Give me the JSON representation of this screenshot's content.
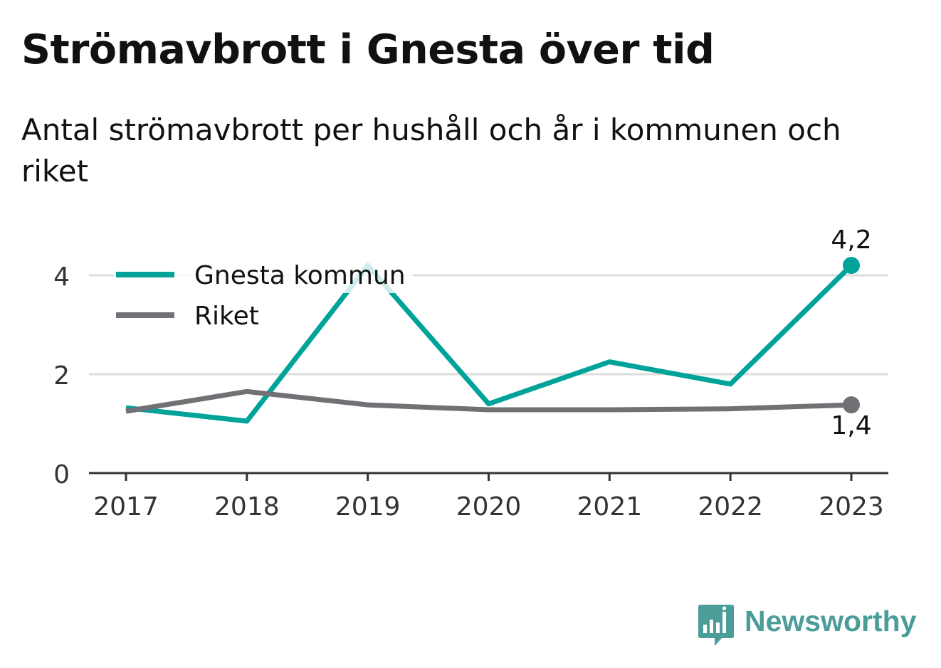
{
  "title": "Strömavbrott i Gnesta över tid",
  "subtitle": "Antal strömavbrott per hushåll och år i kommunen och riket",
  "brand": {
    "name": "Newsworthy",
    "icon": "newsworthy-logo-icon",
    "color": "#4a9d98"
  },
  "chart_data": {
    "type": "line",
    "x": [
      "2017",
      "2018",
      "2019",
      "2020",
      "2021",
      "2022",
      "2023"
    ],
    "ylim": [
      0,
      4.5
    ],
    "yticks": [
      "0",
      "2",
      "4"
    ],
    "grid": true,
    "legend_position": "top-left",
    "series": [
      {
        "name": "Gnesta kommun",
        "color": "#00a39a",
        "values": [
          1.32,
          1.05,
          4.2,
          1.4,
          2.25,
          1.8,
          4.2
        ],
        "end_label": "4,2"
      },
      {
        "name": "Riket",
        "color": "#717075",
        "values": [
          1.25,
          1.65,
          1.38,
          1.28,
          1.28,
          1.3,
          1.38
        ],
        "end_label": "1,4"
      }
    ]
  }
}
